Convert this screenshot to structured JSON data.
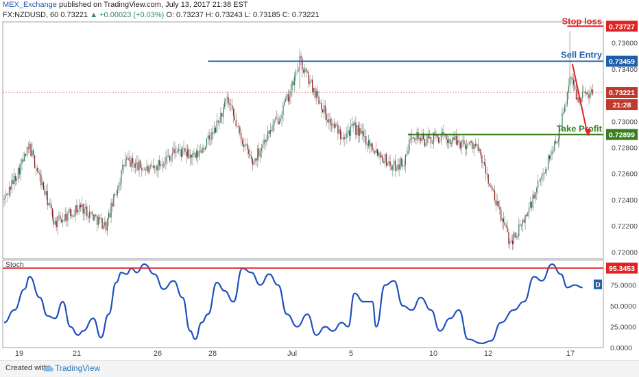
{
  "header": {
    "publisher": "MEX_Exchange",
    "published_text": "published on TradingView.com, July 13, 2017 21:38 EST",
    "symbol_line": "FX:NZDUSD, 60  0.73221",
    "change": "▲ +0.00023 (+0.03%)",
    "ohlc": "O: 0.73237  H: 0.73243  L: 0.73185  C: 0.73221"
  },
  "footer": {
    "created_with": "Created with",
    "brand": "TradingView"
  },
  "colors": {
    "bull": "#2e7d5b",
    "bear": "#8b1a1a",
    "stoch": "#1f4fbf",
    "stop_loss": "#e02424",
    "sell_entry": "#1f5fa8",
    "take_profit": "#3a7d1e",
    "price_tag": "#c0392b",
    "arrow": "#e02424"
  },
  "chart_data": [
    {
      "type": "candlestick",
      "symbol": "FX:NZDUSD",
      "interval": "60",
      "ylim": [
        0.7195,
        0.7376
      ],
      "y_ticks": [
        "0.72000",
        "0.72200",
        "0.72400",
        "0.72600",
        "0.72800",
        "0.73000",
        "0.73200",
        "0.73400",
        "0.73600"
      ],
      "x_ticks": [
        "19",
        "21",
        "26",
        "28",
        "Jul",
        "5",
        "10",
        "12",
        "17"
      ],
      "anchors": [
        [
          0,
          0.724
        ],
        [
          20,
          0.728
        ],
        [
          40,
          0.7222
        ],
        [
          60,
          0.7235
        ],
        [
          80,
          0.722
        ],
        [
          95,
          0.727
        ],
        [
          115,
          0.7262
        ],
        [
          135,
          0.7278
        ],
        [
          150,
          0.7272
        ],
        [
          165,
          0.7292
        ],
        [
          175,
          0.7316
        ],
        [
          185,
          0.729
        ],
        [
          195,
          0.7268
        ],
        [
          205,
          0.7287
        ],
        [
          215,
          0.7302
        ],
        [
          225,
          0.7323
        ],
        [
          232,
          0.7346
        ],
        [
          240,
          0.733
        ],
        [
          248,
          0.7315
        ],
        [
          255,
          0.73
        ],
        [
          265,
          0.729
        ],
        [
          275,
          0.7295
        ],
        [
          290,
          0.728
        ],
        [
          305,
          0.7265
        ],
        [
          315,
          0.727
        ],
        [
          320,
          0.7292
        ],
        [
          330,
          0.7285
        ],
        [
          340,
          0.7288
        ],
        [
          350,
          0.7286
        ],
        [
          360,
          0.7283
        ],
        [
          370,
          0.7282
        ],
        [
          375,
          0.727
        ],
        [
          385,
          0.724
        ],
        [
          392,
          0.7222
        ],
        [
          397,
          0.7208
        ],
        [
          405,
          0.7218
        ],
        [
          415,
          0.724
        ],
        [
          425,
          0.7265
        ],
        [
          435,
          0.729
        ],
        [
          440,
          0.731
        ],
        [
          444,
          0.7335
        ],
        [
          450,
          0.7318
        ],
        [
          457,
          0.7322
        ],
        [
          462,
          0.7322
        ]
      ],
      "last": {
        "price": "0.73221",
        "countdown": "21:28"
      },
      "levels": [
        {
          "name": "Stop loss",
          "price": 0.73727,
          "tag": "0.73727"
        },
        {
          "name": "Sell Entry",
          "price": 0.73459,
          "tag": "0.73459"
        },
        {
          "name": "Take Profit",
          "price": 0.72899,
          "tag": "0.72899"
        }
      ]
    },
    {
      "type": "line",
      "name": "Stoch",
      "ylim": [
        0,
        105
      ],
      "y_ticks": [
        "0.0000",
        "25.0000",
        "50.0000",
        "75.0000"
      ],
      "anchors": [
        [
          0,
          30
        ],
        [
          8,
          45
        ],
        [
          16,
          70
        ],
        [
          20,
          85
        ],
        [
          28,
          60
        ],
        [
          34,
          38
        ],
        [
          40,
          35
        ],
        [
          46,
          55
        ],
        [
          52,
          25
        ],
        [
          58,
          15
        ],
        [
          62,
          20
        ],
        [
          70,
          35
        ],
        [
          76,
          12
        ],
        [
          82,
          40
        ],
        [
          88,
          78
        ],
        [
          92,
          90
        ],
        [
          96,
          88
        ],
        [
          100,
          95
        ],
        [
          104,
          90
        ],
        [
          110,
          100
        ],
        [
          118,
          88
        ],
        [
          125,
          70
        ],
        [
          133,
          80
        ],
        [
          140,
          60
        ],
        [
          146,
          20
        ],
        [
          150,
          10
        ],
        [
          155,
          30
        ],
        [
          160,
          40
        ],
        [
          167,
          78
        ],
        [
          173,
          68
        ],
        [
          180,
          55
        ],
        [
          187,
          95
        ],
        [
          194,
          90
        ],
        [
          201,
          75
        ],
        [
          208,
          88
        ],
        [
          215,
          75
        ],
        [
          222,
          40
        ],
        [
          230,
          25
        ],
        [
          238,
          40
        ],
        [
          245,
          15
        ],
        [
          252,
          25
        ],
        [
          258,
          20
        ],
        [
          265,
          30
        ],
        [
          270,
          25
        ],
        [
          275,
          65
        ],
        [
          282,
          55
        ],
        [
          289,
          55
        ],
        [
          292,
          25
        ],
        [
          299,
          75
        ],
        [
          306,
          80
        ],
        [
          313,
          50
        ],
        [
          320,
          45
        ],
        [
          327,
          60
        ],
        [
          335,
          45
        ],
        [
          342,
          20
        ],
        [
          350,
          35
        ],
        [
          357,
          45
        ],
        [
          364,
          10
        ],
        [
          375,
          5
        ],
        [
          382,
          8
        ],
        [
          390,
          30
        ],
        [
          400,
          45
        ],
        [
          408,
          55
        ],
        [
          416,
          85
        ],
        [
          422,
          80
        ],
        [
          430,
          100
        ],
        [
          437,
          88
        ],
        [
          442,
          72
        ],
        [
          448,
          75
        ],
        [
          454,
          72
        ]
      ],
      "level": {
        "value": 95.3453,
        "tag": "95.3453"
      },
      "legend_label": "Stoch",
      "badge": "D"
    }
  ],
  "annotations": {
    "stop_loss": "Stop loss",
    "sell_entry": "Sell Entry",
    "take_profit": "Take Profit"
  }
}
